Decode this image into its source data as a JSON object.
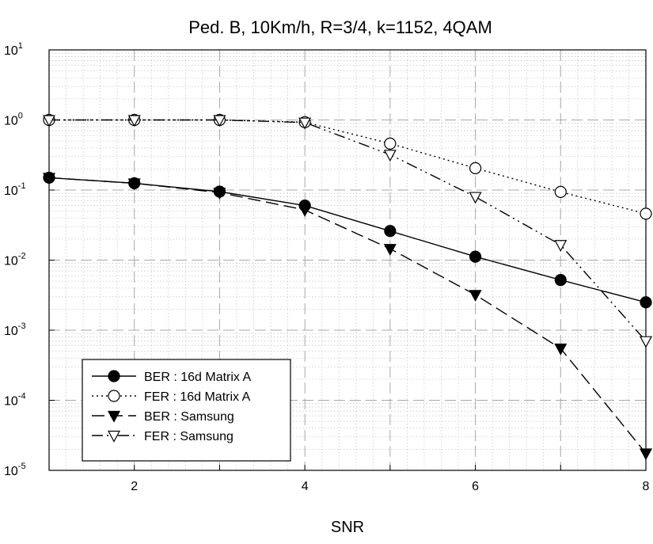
{
  "chart_data": {
    "type": "line",
    "title": "Ped. B, 10Km/h, R=3/4, k=1152, 4QAM",
    "xlabel": "SNR",
    "ylabel": "",
    "xlim": [
      1,
      8
    ],
    "ylim": [
      1e-05,
      10
    ],
    "y_scale": "log",
    "x_ticks": [
      2,
      4,
      6,
      8
    ],
    "y_ticks": [
      {
        "value": 10,
        "base": "10",
        "exp": "1"
      },
      {
        "value": 1,
        "base": "10",
        "exp": "0"
      },
      {
        "value": 0.1,
        "base": "10",
        "exp": "-1"
      },
      {
        "value": 0.01,
        "base": "10",
        "exp": "-2"
      },
      {
        "value": 0.001,
        "base": "10",
        "exp": "-3"
      },
      {
        "value": 0.0001,
        "base": "10",
        "exp": "-4"
      },
      {
        "value": 1e-05,
        "base": "10",
        "exp": "-5"
      }
    ],
    "grid": true,
    "legend_position": "bottom-left",
    "series": [
      {
        "name": "BER : 16d Matrix A",
        "marker": "filled-circle",
        "line": "solid",
        "x": [
          1,
          2,
          3,
          4,
          5,
          6,
          7,
          8
        ],
        "y": [
          0.15,
          0.125,
          0.095,
          0.06,
          0.026,
          0.0112,
          0.0052,
          0.0025
        ]
      },
      {
        "name": "FER : 16d Matrix A",
        "marker": "open-circle",
        "line": "dotted",
        "x": [
          1,
          2,
          3,
          4,
          5,
          6,
          7,
          8
        ],
        "y": [
          1.0,
          1.0,
          1.0,
          0.93,
          0.46,
          0.205,
          0.094,
          0.046
        ]
      },
      {
        "name": "BER : Samsung",
        "marker": "filled-triangle-down",
        "line": "dashed",
        "x": [
          1,
          2,
          3,
          4,
          5,
          6,
          7,
          8
        ],
        "y": [
          0.15,
          0.125,
          0.092,
          0.052,
          0.0145,
          0.0032,
          0.00055,
          1.75e-05
        ]
      },
      {
        "name": "FER : Samsung",
        "marker": "open-triangle-down",
        "line": "dash-dot-dot",
        "x": [
          1,
          2,
          3,
          4,
          5,
          6,
          7,
          8
        ],
        "y": [
          1.0,
          1.0,
          1.0,
          0.92,
          0.32,
          0.08,
          0.0165,
          0.0007
        ]
      }
    ]
  }
}
